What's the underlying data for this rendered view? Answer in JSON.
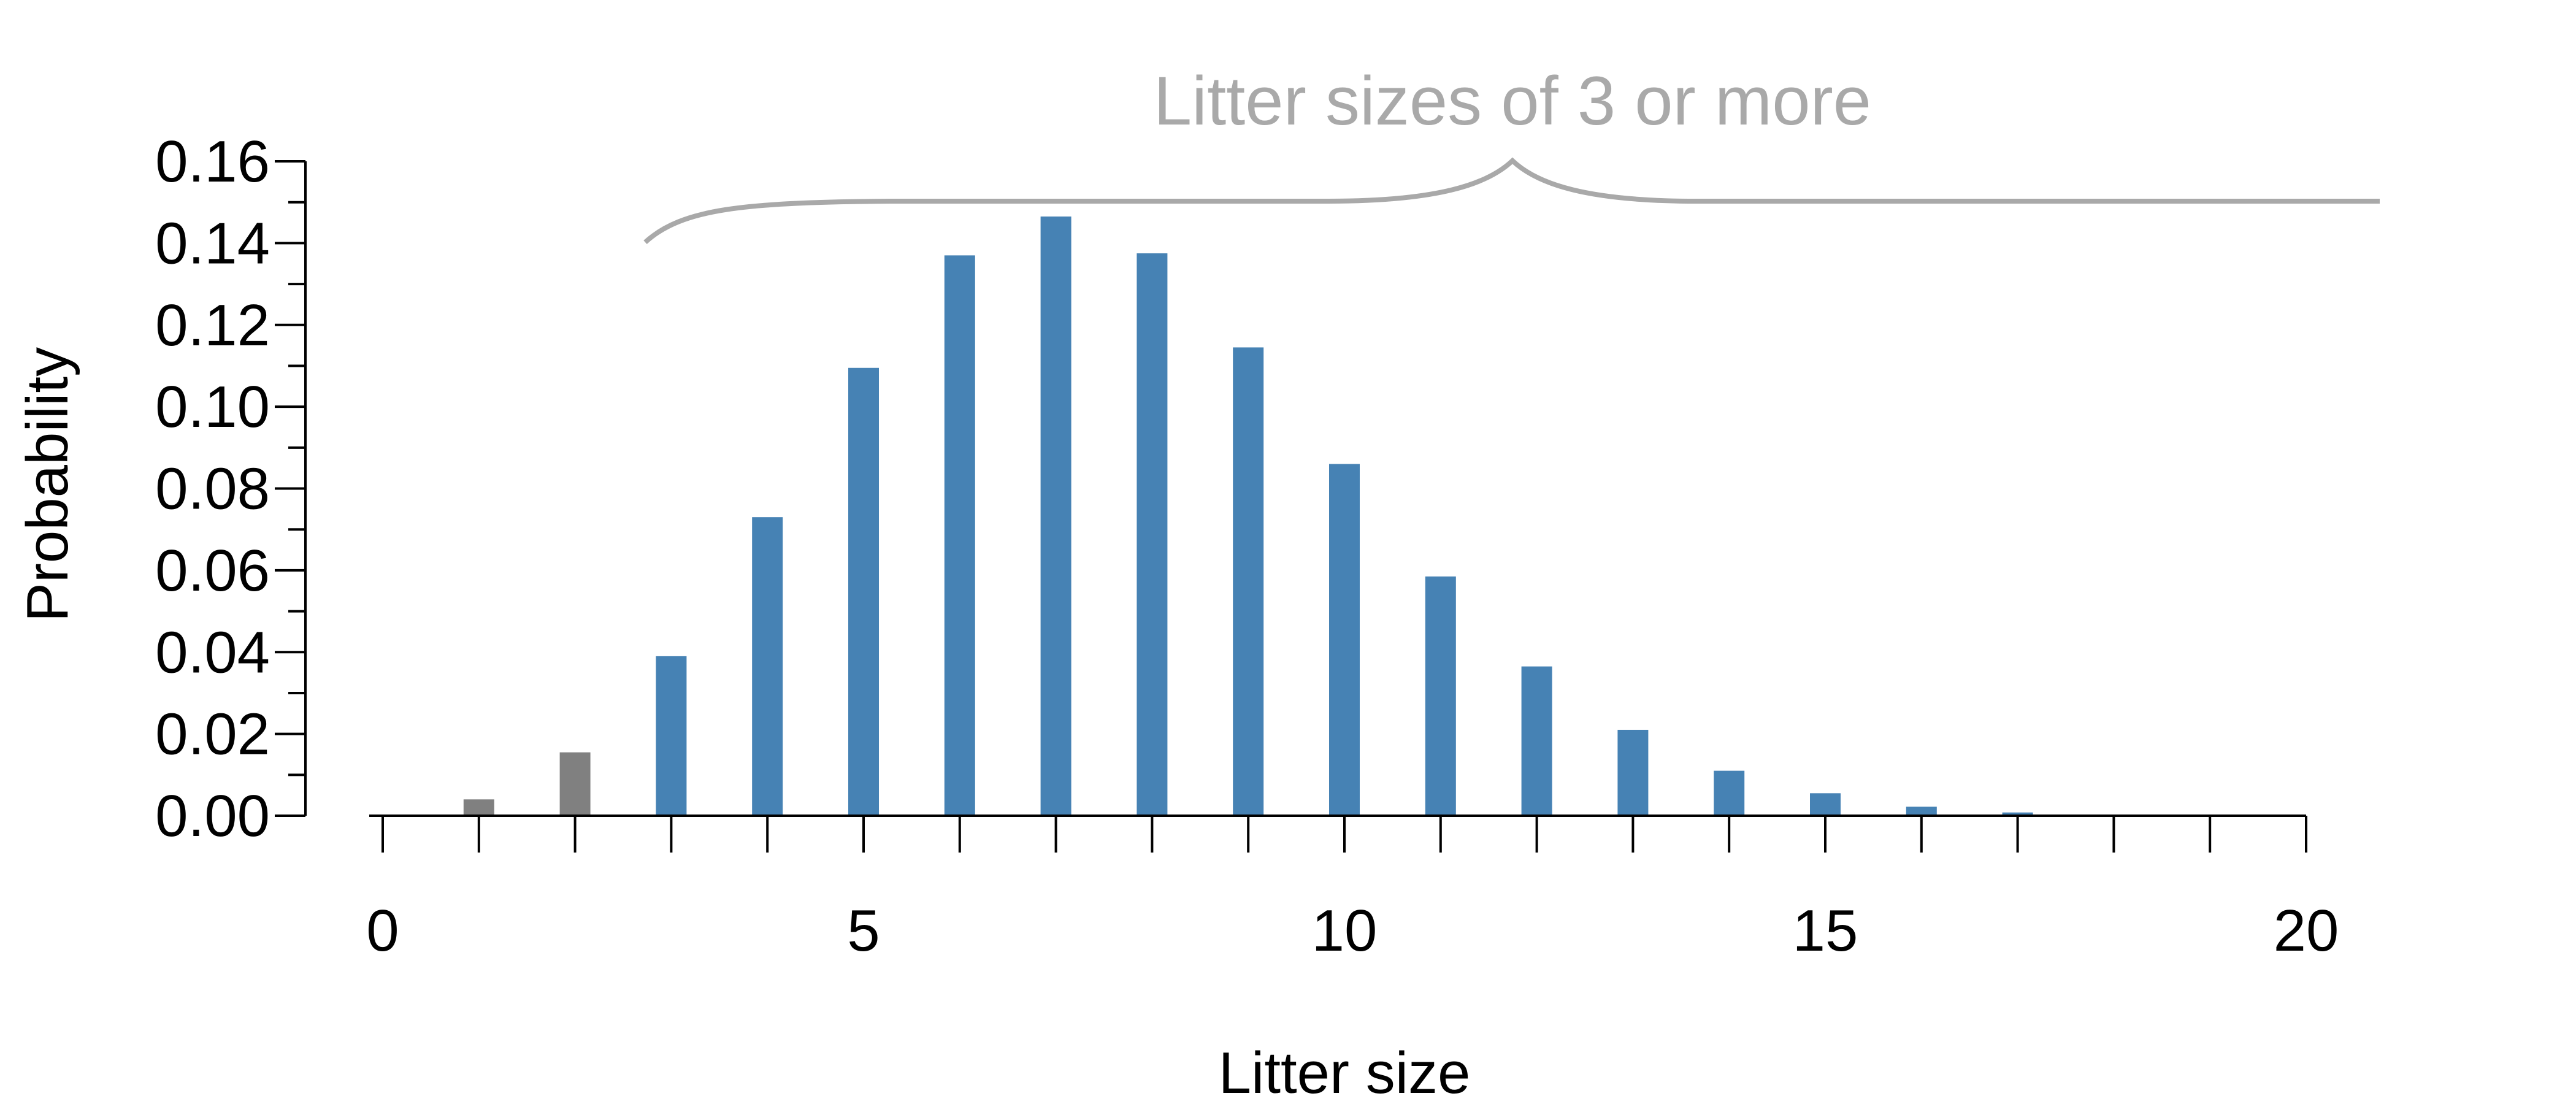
{
  "chart_data": {
    "type": "bar",
    "title": "",
    "xlabel": "Litter size",
    "ylabel": "Probability",
    "xlim": [
      0,
      20
    ],
    "ylim": [
      0,
      0.16
    ],
    "grid": false,
    "legend": "none",
    "x_ticks": [
      0,
      5,
      10,
      15,
      20
    ],
    "x_tick_labels": [
      "0",
      "5",
      "10",
      "15",
      "20"
    ],
    "x_minor_ticks": [
      0,
      1,
      2,
      3,
      4,
      5,
      6,
      7,
      8,
      9,
      10,
      11,
      12,
      13,
      14,
      15,
      16,
      17,
      18,
      19,
      20
    ],
    "y_ticks": [
      0,
      0.02,
      0.04,
      0.06,
      0.08,
      0.1,
      0.12,
      0.14,
      0.16
    ],
    "y_tick_labels": [
      "0.00",
      "0.02",
      "0.04",
      "0.06",
      "0.08",
      "0.10",
      "0.12",
      "0.14",
      "0.16"
    ],
    "x": [
      1,
      2,
      3,
      4,
      5,
      6,
      7,
      8,
      9,
      10,
      11,
      12,
      13,
      14,
      15,
      16,
      17
    ],
    "values": [
      0.004,
      0.0155,
      0.039,
      0.073,
      0.1095,
      0.137,
      0.1465,
      0.1375,
      0.1145,
      0.086,
      0.0585,
      0.0365,
      0.021,
      0.011,
      0.0055,
      0.0022,
      0.0008
    ],
    "bar_groups": [
      {
        "range": [
          1,
          2
        ],
        "color": "#808080"
      },
      {
        "range": [
          3,
          17
        ],
        "color": "#4682B4"
      }
    ],
    "annotations": [
      {
        "text": "Litter sizes of 3 or more",
        "type": "curly-brace",
        "from_x": 3,
        "to_x": 20.8,
        "color": "#A9A9A9"
      }
    ]
  }
}
